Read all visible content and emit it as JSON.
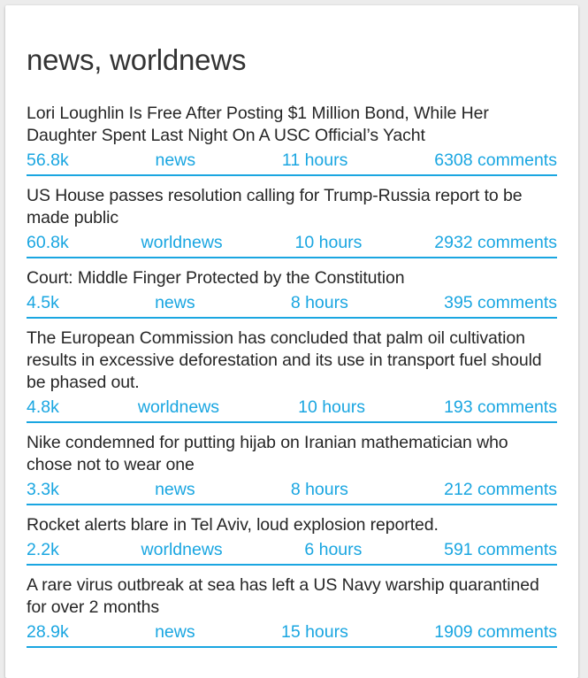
{
  "title": "news, worldnews",
  "accent_color": "#1aa6e1",
  "posts": [
    {
      "headline": "Lori Loughlin Is Free After Posting $1 Million Bond, While Her Daughter Spent Last Night On A USC Official’s Yacht",
      "score": "56.8k",
      "subreddit": "news",
      "age": "11 hours",
      "comments": "6308 comments"
    },
    {
      "headline": "US House passes resolution calling for Trump-Russia report to be made public",
      "score": "60.8k",
      "subreddit": "worldnews",
      "age": "10 hours",
      "comments": "2932 comments"
    },
    {
      "headline": "Court: Middle Finger Protected by the Constitution",
      "score": "4.5k",
      "subreddit": "news",
      "age": "8 hours",
      "comments": "395 comments"
    },
    {
      "headline": "The European Commission has concluded that palm oil cultivation results in excessive deforestation and its use in transport fuel should be phased out.",
      "score": "4.8k",
      "subreddit": "worldnews",
      "age": "10 hours",
      "comments": "193 comments"
    },
    {
      "headline": "Nike condemned for putting hijab on Iranian mathematician who chose not to wear one",
      "score": "3.3k",
      "subreddit": "news",
      "age": "8 hours",
      "comments": "212 comments"
    },
    {
      "headline": "Rocket alerts blare in Tel Aviv, loud explosion reported.",
      "score": "2.2k",
      "subreddit": "worldnews",
      "age": "6 hours",
      "comments": "591 comments"
    },
    {
      "headline": "A rare virus outbreak at sea has left a US Navy warship quarantined for over 2 months",
      "score": "28.9k",
      "subreddit": "news",
      "age": "15 hours",
      "comments": "1909 comments"
    }
  ]
}
